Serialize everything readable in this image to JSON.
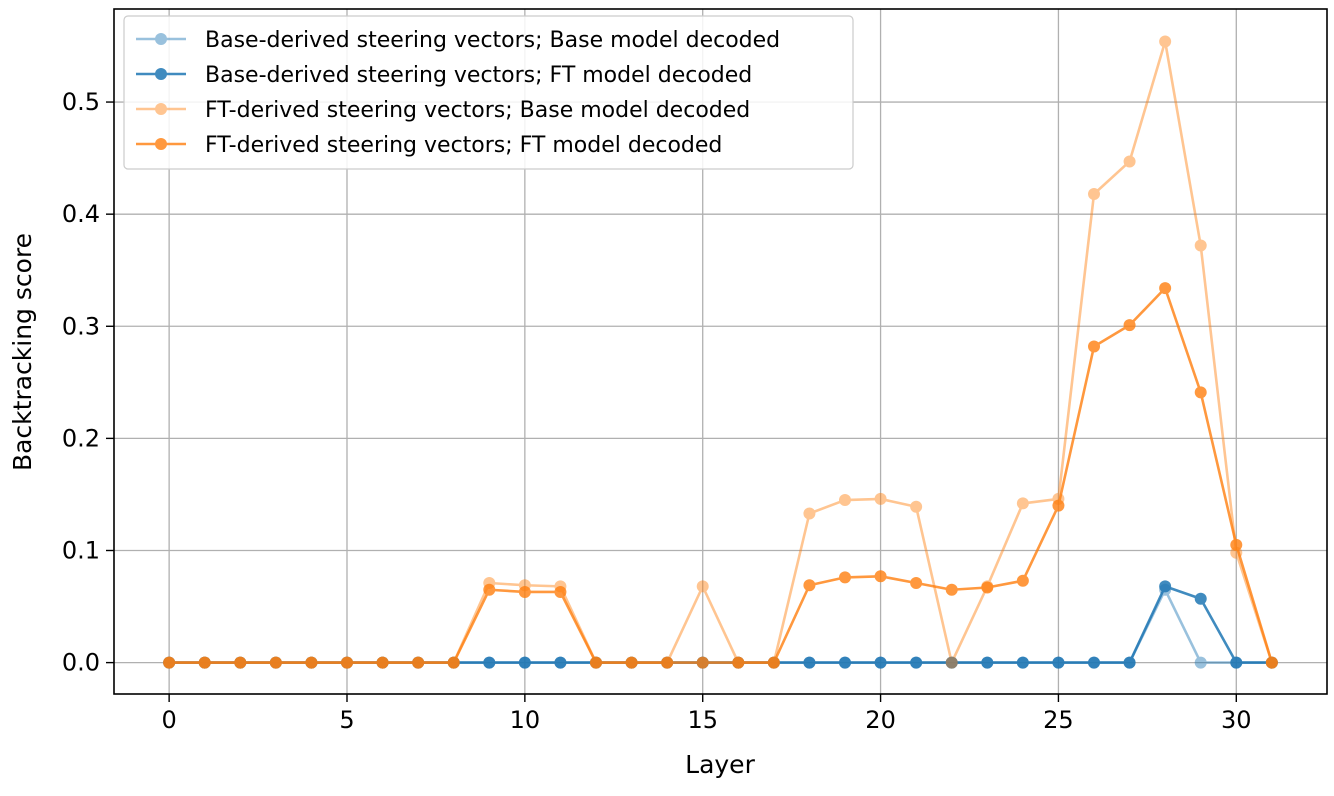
{
  "chart_data": {
    "type": "line",
    "title": "",
    "xlabel": "Layer",
    "ylabel": "Backtracking score",
    "xlim": [
      -1.55,
      32.55
    ],
    "ylim": [
      -0.028,
      0.583
    ],
    "xticks": [
      0,
      5,
      10,
      15,
      20,
      25,
      30
    ],
    "xtick_labels": [
      "0",
      "5",
      "10",
      "15",
      "20",
      "25",
      "30"
    ],
    "yticks": [
      0.0,
      0.1,
      0.2,
      0.3,
      0.4,
      0.5
    ],
    "ytick_labels": [
      "0.0",
      "0.1",
      "0.2",
      "0.3",
      "0.4",
      "0.5"
    ],
    "grid": true,
    "legend_position": "top-left",
    "x": [
      0,
      1,
      2,
      3,
      4,
      5,
      6,
      7,
      8,
      9,
      10,
      11,
      12,
      13,
      14,
      15,
      16,
      17,
      18,
      19,
      20,
      21,
      22,
      23,
      24,
      25,
      26,
      27,
      28,
      29,
      30,
      31
    ],
    "series": [
      {
        "name": "Base-derived steering vectors; Base model decoded",
        "color": "#1f77b4",
        "opacity": 0.45,
        "values": [
          0,
          0,
          0,
          0,
          0,
          0,
          0,
          0,
          0,
          0,
          0,
          0,
          0,
          0,
          0,
          0,
          0,
          0,
          0,
          0,
          0,
          0,
          0,
          0,
          0,
          0,
          0,
          0,
          0.065,
          0,
          0,
          0
        ]
      },
      {
        "name": "Base-derived steering vectors; FT model decoded",
        "color": "#1f77b4",
        "opacity": 0.85,
        "values": [
          0,
          0,
          0,
          0,
          0,
          0,
          0,
          0,
          0,
          0,
          0,
          0,
          0,
          0,
          0,
          0,
          0,
          0,
          0,
          0,
          0,
          0,
          0,
          0,
          0,
          0,
          0,
          0,
          0.068,
          0.057,
          0,
          0
        ]
      },
      {
        "name": "FT-derived steering vectors; Base model decoded",
        "color": "#ff7f0e",
        "opacity": 0.45,
        "values": [
          0,
          0,
          0,
          0,
          0,
          0,
          0,
          0,
          0,
          0.071,
          0.069,
          0.068,
          0,
          0,
          0,
          0.068,
          0,
          0,
          0.133,
          0.145,
          0.146,
          0.139,
          0,
          0.068,
          0.142,
          0.146,
          0.418,
          0.447,
          0.554,
          0.372,
          0.098,
          0
        ]
      },
      {
        "name": "FT-derived steering vectors; FT model decoded",
        "color": "#ff7f0e",
        "opacity": 0.8,
        "values": [
          0,
          0,
          0,
          0,
          0,
          0,
          0,
          0,
          0,
          0.065,
          0.063,
          0.063,
          0,
          0,
          0,
          0,
          0,
          0,
          0.069,
          0.076,
          0.077,
          0.071,
          0.065,
          0.067,
          0.073,
          0.14,
          0.282,
          0.301,
          0.334,
          0.241,
          0.105,
          0
        ]
      }
    ]
  }
}
